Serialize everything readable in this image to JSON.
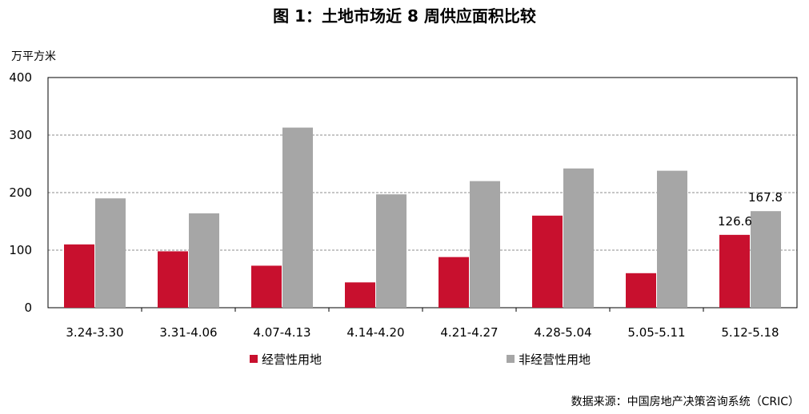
{
  "page": {
    "title": "图 1：土地市场近 8 周供应面积比较",
    "unit": "万平方米",
    "source": "数据来源：中国房地产决策咨询系统（CRIC）"
  },
  "chart_data": {
    "type": "bar",
    "title": "图 1：土地市场近 8 周供应面积比较",
    "ylabel": "万平方米",
    "xlabel": "",
    "ylim": [
      0,
      400
    ],
    "yticks": [
      0,
      100,
      200,
      300,
      400
    ],
    "grid": "horizontal dashed",
    "legend": "bottom",
    "categories": [
      "3.24-3.30",
      "3.31-4.06",
      "4.07-4.13",
      "4.14-4.20",
      "4.21-4.27",
      "4.28-5.04",
      "5.05-5.11",
      "5.12-5.18"
    ],
    "series": [
      {
        "name": "经营性用地",
        "color": "#c8102e",
        "values": [
          110,
          98,
          73,
          44,
          88,
          160,
          60,
          126.6
        ]
      },
      {
        "name": "非经营性用地",
        "color": "#a6a6a6",
        "values": [
          190,
          164,
          313,
          197,
          220,
          242,
          238,
          167.8
        ]
      }
    ],
    "data_labels": [
      {
        "series": 0,
        "index": 7,
        "text": "126.6"
      },
      {
        "series": 1,
        "index": 7,
        "text": "167.8"
      }
    ]
  }
}
